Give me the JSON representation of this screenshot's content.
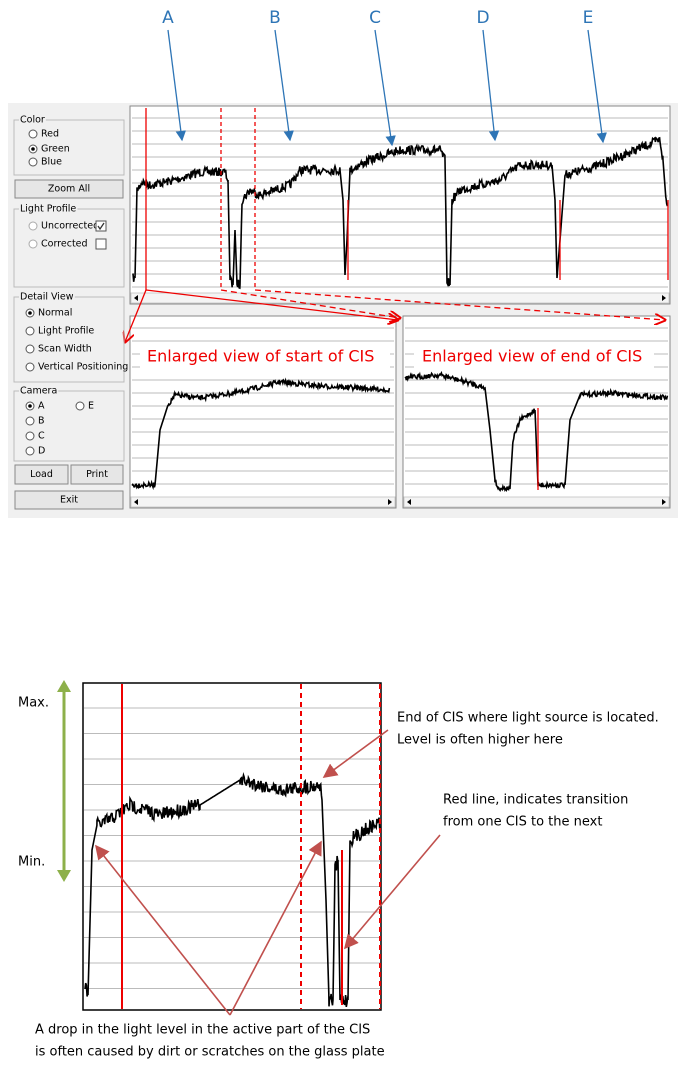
{
  "top_labels": [
    "A",
    "B",
    "C",
    "D",
    "E"
  ],
  "panel": {
    "color": {
      "title": "Color",
      "options": [
        "Red",
        "Green",
        "Blue"
      ]
    },
    "zoom_all": "Zoom All",
    "light_profile": {
      "title": "Light Profile",
      "options": [
        "Uncorrected",
        "Corrected"
      ]
    },
    "detail_view": {
      "title": "Detail View",
      "options": [
        "Normal",
        "Light Profile",
        "Scan Width",
        "Vertical Positioning"
      ]
    },
    "camera": {
      "title": "Camera",
      "options": [
        "A",
        "E",
        "B",
        "C",
        "D"
      ]
    },
    "buttons": {
      "load": "Load",
      "print": "Print",
      "exit": "Exit"
    }
  },
  "annotations": {
    "start": "Enlarged view of start of CIS",
    "end": "Enlarged view of end of CIS"
  },
  "diagram": {
    "max": "Max.",
    "min": "Min.",
    "note_end": [
      "End of CIS where light source is located.",
      "Level is often higher here"
    ],
    "note_red": [
      "Red line, indicates transition",
      "from one CIS to the next"
    ],
    "note_drop": [
      "A drop in the light level in the active part of the CIS",
      "is often caused by dirt or scratches on the glass plate"
    ]
  }
}
